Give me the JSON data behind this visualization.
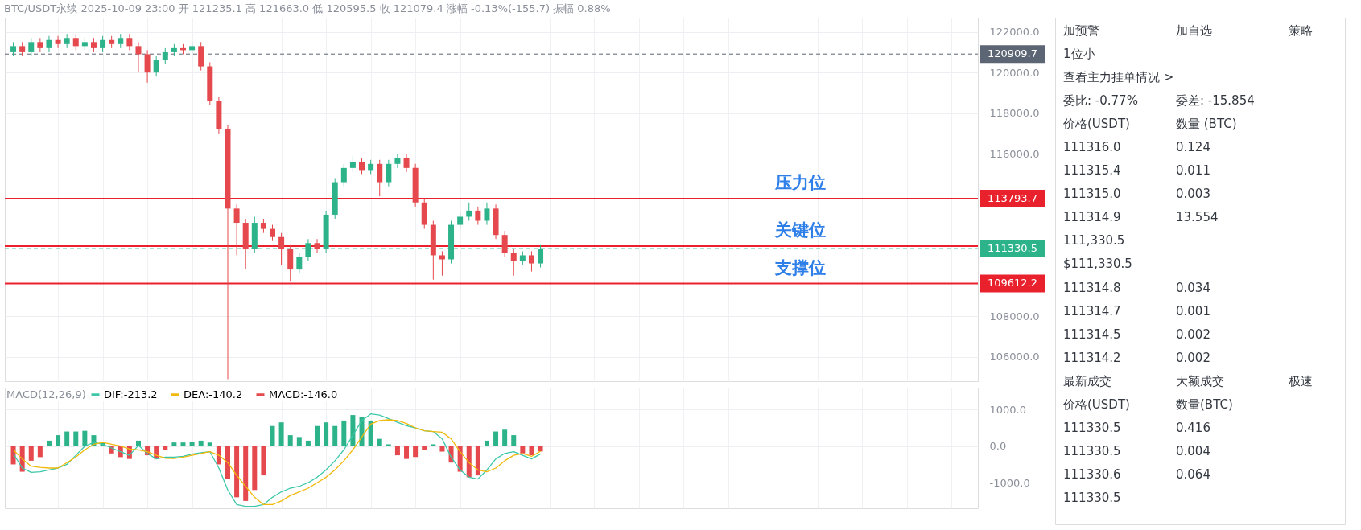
{
  "chart_data": [
    {
      "type": "candlestick",
      "title": "BTC/USDT永续 2025-10-09 23:00 开 121235.1 高 121663.0 低 120595.5 收 121079.4 涨幅 -0.13%(-155.7) 振幅 0.88%",
      "categories": [
        null,
        null,
        null,
        null,
        null,
        null,
        null,
        null,
        null,
        null,
        null,
        null,
        null,
        null,
        null,
        null,
        null,
        null,
        null,
        null,
        null,
        null,
        null,
        null,
        null,
        null,
        null,
        null,
        null,
        null,
        null,
        null,
        null,
        null,
        null,
        null,
        null,
        null,
        null,
        null,
        null,
        null,
        null,
        null,
        null,
        null,
        null,
        null,
        null,
        null,
        null,
        null,
        null,
        null,
        null,
        null,
        null,
        null,
        null,
        null,
        null,
        null,
        null,
        null,
        null,
        null,
        null,
        null,
        null,
        null,
        null,
        null,
        null,
        null,
        null,
        null,
        null,
        null,
        null,
        null,
        null,
        null,
        null,
        null,
        null,
        null,
        null,
        null,
        null,
        null,
        null,
        null,
        null,
        null,
        null,
        null,
        null,
        null,
        null,
        null,
        null,
        null,
        null,
        null,
        null,
        null,
        null,
        null
      ],
      "ohlc": [
        [
          121000,
          121500,
          120800,
          121300
        ],
        [
          121300,
          121500,
          120800,
          121000
        ],
        [
          121000,
          121700,
          120800,
          121500
        ],
        [
          121500,
          121700,
          121000,
          121200
        ],
        [
          121200,
          121800,
          121000,
          121600
        ],
        [
          121600,
          121800,
          121200,
          121400
        ],
        [
          121400,
          121900,
          121200,
          121700
        ],
        [
          121700,
          121900,
          121100,
          121300
        ],
        [
          121300,
          121700,
          121100,
          121500
        ],
        [
          121500,
          121700,
          121000,
          121200
        ],
        [
          121200,
          121800,
          121000,
          121600
        ],
        [
          121600,
          121800,
          121200,
          121400
        ],
        [
          121400,
          121900,
          121200,
          121700
        ],
        [
          121700,
          121900,
          121100,
          121300
        ],
        [
          121300,
          121500,
          120000,
          120900
        ],
        [
          120900,
          121100,
          119500,
          120000
        ],
        [
          120000,
          120800,
          119800,
          120600
        ],
        [
          120600,
          121200,
          120400,
          121000
        ],
        [
          121000,
          121400,
          120800,
          121200
        ],
        [
          121200,
          121400,
          120900,
          121100
        ],
        [
          121100,
          121500,
          120900,
          121300
        ],
        [
          121300,
          121500,
          120100,
          120300
        ],
        [
          120300,
          120500,
          118400,
          118600
        ],
        [
          118600,
          118800,
          117000,
          117200
        ],
        [
          117200,
          117400,
          104900,
          113300
        ],
        [
          113300,
          113500,
          111000,
          112600
        ],
        [
          112600,
          112800,
          110300,
          111300
        ],
        [
          111300,
          112900,
          111100,
          112600
        ],
        [
          112600,
          112800,
          112100,
          112300
        ],
        [
          112300,
          112500,
          111700,
          111900
        ],
        [
          111900,
          112100,
          110500,
          111300
        ],
        [
          111300,
          111500,
          109700,
          110300
        ],
        [
          110300,
          111100,
          110100,
          110900
        ],
        [
          110900,
          111800,
          110700,
          111600
        ],
        [
          111600,
          111800,
          111100,
          111300
        ],
        [
          111300,
          113200,
          111100,
          113000
        ],
        [
          113000,
          114800,
          112800,
          114600
        ],
        [
          114600,
          115500,
          114400,
          115300
        ],
        [
          115300,
          115900,
          115100,
          115600
        ],
        [
          115600,
          115800,
          115000,
          115200
        ],
        [
          115200,
          115700,
          115000,
          115500
        ],
        [
          115500,
          115700,
          113900,
          114600
        ],
        [
          114600,
          115700,
          114400,
          115500
        ],
        [
          115500,
          116000,
          115300,
          115800
        ],
        [
          115800,
          116000,
          115100,
          115300
        ],
        [
          115300,
          115500,
          113400,
          113600
        ],
        [
          113600,
          113800,
          112300,
          112500
        ],
        [
          112500,
          112700,
          109800,
          111000
        ],
        [
          111000,
          111200,
          110000,
          110800
        ],
        [
          110800,
          112700,
          110600,
          112500
        ],
        [
          112500,
          113100,
          112300,
          112900
        ],
        [
          112900,
          113600,
          112700,
          113200
        ],
        [
          113200,
          113400,
          112500,
          112700
        ],
        [
          112700,
          113600,
          112500,
          113300
        ],
        [
          113300,
          113500,
          111800,
          112000
        ],
        [
          112000,
          112200,
          110900,
          111100
        ],
        [
          111100,
          111300,
          110000,
          110700
        ],
        [
          110700,
          111200,
          110500,
          111000
        ],
        [
          111000,
          111200,
          110200,
          110600
        ],
        [
          110600,
          111500,
          110400,
          111330.5
        ],
        null,
        null,
        null,
        null,
        null,
        null,
        null,
        null,
        null,
        null,
        null,
        null,
        null,
        null,
        null,
        null,
        null,
        null,
        null,
        null,
        null,
        null,
        null,
        null,
        null,
        null,
        null,
        null,
        null,
        null,
        null,
        null,
        null,
        null,
        null,
        null,
        null,
        null,
        null,
        null,
        null,
        null,
        null,
        null,
        null,
        null,
        null,
        null
      ],
      "colors": [
        "#2db38a",
        "#e5484d",
        "#2db38a",
        "#e5484d",
        "#2db38a",
        "#e5484d",
        "#2db38a",
        "#e5484d",
        "#2db38a",
        "#e5484d",
        "#2db38a",
        "#e5484d",
        "#2db38a",
        "#e5484d",
        "#e5484d",
        "#e5484d",
        "#2db38a",
        "#2db38a",
        "#2db38a",
        "#e5484d",
        "#2db38a",
        "#e5484d",
        "#e5484d",
        "#e5484d",
        "#e5484d",
        "#e5484d",
        "#e5484d",
        "#2db38a",
        "#e5484d",
        "#e5484d",
        "#e5484d",
        "#e5484d",
        "#2db38a",
        "#2db38a",
        "#e5484d",
        "#2db38a",
        "#2db38a",
        "#2db38a",
        "#2db38a",
        "#e5484d",
        "#2db38a",
        "#e5484d",
        "#2db38a",
        "#2db38a",
        "#e5484d",
        "#e5484d",
        "#e5484d",
        "#e5484d",
        "#e5484d",
        "#2db38a",
        "#2db38a",
        "#2db38a",
        "#e5484d",
        "#2db38a",
        "#e5484d",
        "#e5484d",
        "#e5484d",
        "#2db38a",
        "#e5484d",
        "#2db38a",
        null,
        null,
        null,
        null,
        null,
        null,
        null,
        null,
        null,
        null,
        null,
        null,
        null,
        null,
        null,
        null,
        null,
        null,
        null,
        null,
        null,
        null,
        null,
        null,
        null,
        null,
        null,
        null,
        null,
        null,
        null,
        null,
        null,
        null,
        null,
        null,
        null,
        null,
        null,
        null,
        null,
        null,
        null,
        null,
        null,
        null,
        null,
        null
      ],
      "ylim": [
        104800,
        122700
      ],
      "yticks": [
        {
          "value": 106000,
          "label": "106000.0"
        },
        {
          "value": 108000,
          "label": "108000.0"
        },
        {
          "value": 116000,
          "label": "116000.0"
        },
        {
          "value": 118000,
          "label": "118000.0"
        },
        {
          "value": 120000,
          "label": "120000.0"
        },
        {
          "value": 122000,
          "label": "122000.0"
        }
      ],
      "tick_labels": "y",
      "grid": true,
      "ref_lines": [
        {
          "axis": "y",
          "value": 120909.7,
          "label": "120909.7",
          "color": "#5b6573",
          "line_style": "dashed"
        },
        {
          "axis": "y",
          "value": 113793.7,
          "label": "113793.7",
          "color": "#e8212d"
        },
        {
          "axis": "y",
          "value": 111450,
          "label": null,
          "color": "#e8212d"
        },
        {
          "axis": "y",
          "value": 111330.5,
          "label": "111330.5",
          "color": "#2db38a",
          "line_style": "dashed"
        },
        {
          "axis": "y",
          "value": 109612.2,
          "label": "109612.2",
          "color": "#e8212d"
        }
      ],
      "annotations": [
        "压力位",
        "关键位",
        "支撑位"
      ]
    },
    {
      "type": "bar",
      "legend_title": "MACD(12,26,9)",
      "legend": "top left",
      "categories": [
        null,
        null,
        null,
        null,
        null,
        null,
        null,
        null,
        null,
        null,
        null,
        null,
        null,
        null,
        null,
        null,
        null,
        null,
        null,
        null,
        null,
        null,
        null,
        null,
        null,
        null,
        null,
        null,
        null,
        null,
        null,
        null,
        null,
        null,
        null,
        null,
        null,
        null,
        null,
        null,
        null,
        null,
        null,
        null,
        null,
        null,
        null,
        null,
        null,
        null,
        null,
        null,
        null,
        null,
        null,
        null,
        null,
        null,
        null,
        null,
        null,
        null,
        null,
        null,
        null,
        null,
        null,
        null,
        null,
        null,
        null,
        null,
        null,
        null,
        null,
        null,
        null,
        null,
        null,
        null,
        null,
        null,
        null,
        null,
        null,
        null,
        null,
        null,
        null,
        null,
        null,
        null,
        null,
        null,
        null,
        null,
        null,
        null,
        null,
        null,
        null,
        null,
        null,
        null,
        null,
        null,
        null,
        null
      ],
      "series": [
        {
          "name": "DIF:-213.2",
          "type": "line",
          "color": "#3cc8a8",
          "values": [
            -200,
            -600,
            -720,
            -700,
            -650,
            -600,
            -500,
            -250,
            0,
            100,
            50,
            -50,
            -150,
            -250,
            20,
            -200,
            -350,
            -300,
            -300,
            -280,
            -220,
            -180,
            -150,
            -600,
            -1200,
            -1600,
            -1650,
            -1650,
            -1600,
            -1400,
            -1250,
            -1150,
            -1100,
            -1000,
            -850,
            -650,
            -400,
            -100,
            300,
            700,
            880,
            850,
            750,
            650,
            560,
            500,
            420,
            400,
            200,
            -300,
            -650,
            -850,
            -900,
            -650,
            -350,
            -200,
            -150,
            -250,
            -350,
            -213.2,
            null,
            null,
            null,
            null,
            null,
            null,
            null,
            null,
            null,
            null,
            null,
            null,
            null,
            null,
            null,
            null,
            null,
            null,
            null,
            null,
            null,
            null,
            null,
            null,
            null,
            null,
            null,
            null,
            null,
            null,
            null,
            null,
            null,
            null,
            null,
            null,
            null,
            null,
            null,
            null,
            null,
            null,
            null,
            null,
            null,
            null,
            null,
            null
          ]
        },
        {
          "name": "DEA:-140.2",
          "type": "line",
          "color": "#f0b90b",
          "values": [
            -100,
            -350,
            -550,
            -580,
            -600,
            -600,
            -450,
            -300,
            -100,
            50,
            100,
            50,
            0,
            -80,
            -100,
            -150,
            -250,
            -330,
            -340,
            -300,
            -250,
            -200,
            -150,
            -250,
            -450,
            -800,
            -1100,
            -1400,
            -1600,
            -1600,
            -1500,
            -1350,
            -1250,
            -1150,
            -1000,
            -850,
            -650,
            -400,
            -100,
            250,
            600,
            700,
            720,
            700,
            620,
            500,
            420,
            400,
            380,
            200,
            -150,
            -450,
            -650,
            -700,
            -600,
            -400,
            -250,
            -200,
            -280,
            -140.2,
            null,
            null,
            null,
            null,
            null,
            null,
            null,
            null,
            null,
            null,
            null,
            null,
            null,
            null,
            null,
            null,
            null,
            null,
            null,
            null,
            null,
            null,
            null,
            null,
            null,
            null,
            null,
            null,
            null,
            null,
            null,
            null,
            null,
            null,
            null,
            null,
            null,
            null,
            null,
            null,
            null,
            null,
            null,
            null,
            null,
            null,
            null,
            null
          ]
        },
        {
          "name": "MACD:-146.0",
          "type": "bar",
          "color": "#e5484d",
          "values": [
            -500,
            -700,
            -400,
            -300,
            150,
            300,
            400,
            400,
            420,
            300,
            100,
            -200,
            -300,
            -350,
            150,
            -250,
            -350,
            -100,
            100,
            100,
            120,
            150,
            100,
            -500,
            -900,
            -1400,
            -1500,
            -1200,
            -800,
            550,
            650,
            300,
            250,
            150,
            550,
            650,
            550,
            700,
            850,
            800,
            700,
            200,
            50,
            -250,
            -350,
            -300,
            -100,
            50,
            -150,
            -450,
            -700,
            -850,
            -800,
            150,
            400,
            450,
            300,
            -200,
            -250,
            -146,
            null,
            null,
            null,
            null,
            null,
            null,
            null,
            null,
            null,
            null,
            null,
            null,
            null,
            null,
            null,
            null,
            null,
            null,
            null,
            null,
            null,
            null,
            null,
            null,
            null,
            null,
            null,
            null,
            null,
            null,
            null,
            null,
            null,
            null,
            null,
            null,
            null,
            null,
            null,
            null,
            null,
            null,
            null,
            null,
            null,
            null,
            null,
            null
          ],
          "colors": [
            "#e5484d",
            "#e5484d",
            "#e5484d",
            "#e5484d",
            "#2db38a",
            "#2db38a",
            "#2db38a",
            "#2db38a",
            "#2db38a",
            "#2db38a",
            "#2db38a",
            "#e5484d",
            "#e5484d",
            "#e5484d",
            "#2db38a",
            "#e5484d",
            "#e5484d",
            "#e5484d",
            "#2db38a",
            "#2db38a",
            "#2db38a",
            "#2db38a",
            "#2db38a",
            "#e5484d",
            "#e5484d",
            "#e5484d",
            "#e5484d",
            "#e5484d",
            "#e5484d",
            "#2db38a",
            "#2db38a",
            "#2db38a",
            "#2db38a",
            "#2db38a",
            "#2db38a",
            "#2db38a",
            "#2db38a",
            "#2db38a",
            "#2db38a",
            "#2db38a",
            "#2db38a",
            "#2db38a",
            "#2db38a",
            "#e5484d",
            "#e5484d",
            "#e5484d",
            "#e5484d",
            "#2db38a",
            "#e5484d",
            "#e5484d",
            "#e5484d",
            "#e5484d",
            "#e5484d",
            "#2db38a",
            "#2db38a",
            "#2db38a",
            "#2db38a",
            "#e5484d",
            "#e5484d",
            "#e5484d",
            null,
            null,
            null,
            null,
            null,
            null,
            null,
            null,
            null,
            null,
            null,
            null,
            null,
            null,
            null,
            null,
            null,
            null,
            null,
            null,
            null,
            null,
            null,
            null,
            null,
            null,
            null,
            null,
            null,
            null,
            null,
            null,
            null,
            null,
            null,
            null,
            null,
            null,
            null,
            null,
            null,
            null,
            null,
            null,
            null,
            null,
            null,
            null
          ]
        }
      ],
      "ylim": [
        -1700,
        1600
      ],
      "yticks": [
        {
          "value": -1000,
          "label": "-1000.0"
        },
        {
          "value": 0,
          "label": "0.0"
        },
        {
          "value": 1000,
          "label": "1000.0"
        }
      ],
      "tick_labels": "y",
      "grid": true
    },
    {
      "type": "other",
      "annotations": [
        "加预警   加自选   策略",
        "1位小",
        "查看主力挂单情况 >",
        "委比: -0.77%   委差: -15.854",
        "价格(USDT)   数量 (BTC)",
        "111316.0   0.124",
        "111315.4   0.011",
        "111315.0   0.003",
        "111314.9   13.554",
        "111,330.5",
        "$111,330.5",
        "111314.8   0.034",
        "111314.7   0.001",
        "111314.5   0.002",
        "111314.2   0.002",
        "最新成交   大额成交   极速",
        "价格(USDT)   数量(BTC)",
        "111330.5   0.416",
        "111330.5   0.004",
        "111330.6   0.064",
        "111330.5"
      ]
    }
  ]
}
